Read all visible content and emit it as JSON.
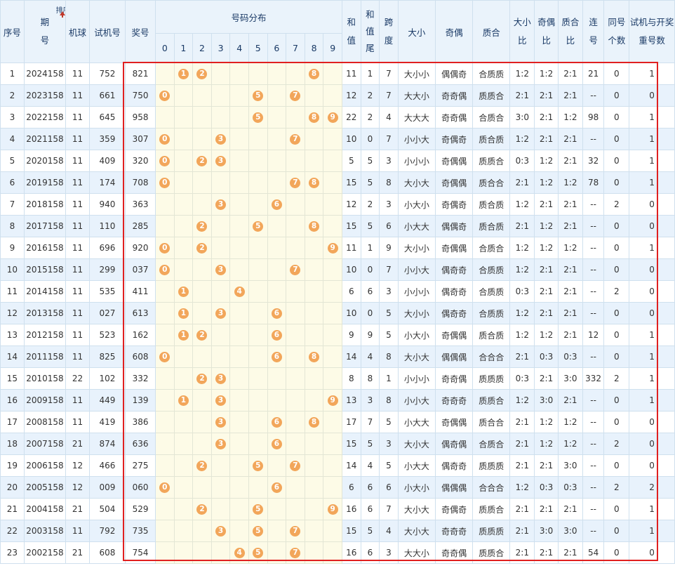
{
  "headers": {
    "seq": "序号",
    "period_top": "期",
    "period_bottom": "号",
    "sort_label": "排序",
    "machine": "机球",
    "trial": "试机号",
    "award": "奖号",
    "dist": "号码分布",
    "digits": [
      "0",
      "1",
      "2",
      "3",
      "4",
      "5",
      "6",
      "7",
      "8",
      "9"
    ],
    "sum_top": "和",
    "sum_bottom": "值",
    "sumtail_1": "和",
    "sumtail_2": "值",
    "sumtail_3": "尾",
    "span_top": "跨",
    "span_bottom": "度",
    "size": "大小",
    "parity": "奇偶",
    "prime": "质合",
    "size_ratio_top": "大小",
    "size_ratio_bottom": "比",
    "parity_ratio_top": "奇偶",
    "parity_ratio_bottom": "比",
    "prime_ratio_top": "质合",
    "prime_ratio_bottom": "比",
    "consec_top": "连",
    "consec_bottom": "号",
    "same_top": "同号",
    "same_bottom": "个数",
    "repeat_top": "试机与开奖",
    "repeat_bottom": "重号数"
  },
  "rows": [
    {
      "seq": "1",
      "period": "2024158",
      "machine": "11",
      "trial": "752",
      "award": "821",
      "balls": [
        1,
        2,
        8
      ],
      "sum": "11",
      "tail": "1",
      "span": "7",
      "size": "大小小",
      "parity": "偶偶奇",
      "prime": "合质质",
      "sr": "1:2",
      "pr": "1:2",
      "qr": "2:1",
      "consec": "21",
      "same": "0",
      "repeat": "1"
    },
    {
      "seq": "2",
      "period": "2023158",
      "machine": "11",
      "trial": "661",
      "award": "750",
      "balls": [
        0,
        5,
        7
      ],
      "sum": "12",
      "tail": "2",
      "span": "7",
      "size": "大大小",
      "parity": "奇奇偶",
      "prime": "质质合",
      "sr": "2:1",
      "pr": "2:1",
      "qr": "2:1",
      "consec": "--",
      "same": "0",
      "repeat": "0"
    },
    {
      "seq": "3",
      "period": "2022158",
      "machine": "11",
      "trial": "645",
      "award": "958",
      "balls": [
        5,
        8,
        9
      ],
      "sum": "22",
      "tail": "2",
      "span": "4",
      "size": "大大大",
      "parity": "奇奇偶",
      "prime": "合质合",
      "sr": "3:0",
      "pr": "2:1",
      "qr": "1:2",
      "consec": "98",
      "same": "0",
      "repeat": "1"
    },
    {
      "seq": "4",
      "period": "2021158",
      "machine": "11",
      "trial": "359",
      "award": "307",
      "balls": [
        0,
        3,
        7
      ],
      "sum": "10",
      "tail": "0",
      "span": "7",
      "size": "小小大",
      "parity": "奇偶奇",
      "prime": "质合质",
      "sr": "1:2",
      "pr": "2:1",
      "qr": "2:1",
      "consec": "--",
      "same": "0",
      "repeat": "1"
    },
    {
      "seq": "5",
      "period": "2020158",
      "machine": "11",
      "trial": "409",
      "award": "320",
      "balls": [
        0,
        2,
        3
      ],
      "sum": "5",
      "tail": "5",
      "span": "3",
      "size": "小小小",
      "parity": "奇偶偶",
      "prime": "质质合",
      "sr": "0:3",
      "pr": "1:2",
      "qr": "2:1",
      "consec": "32",
      "same": "0",
      "repeat": "1"
    },
    {
      "seq": "6",
      "period": "2019158",
      "machine": "11",
      "trial": "174",
      "award": "708",
      "balls": [
        0,
        7,
        8
      ],
      "sum": "15",
      "tail": "5",
      "span": "8",
      "size": "大小大",
      "parity": "奇偶偶",
      "prime": "质合合",
      "sr": "2:1",
      "pr": "1:2",
      "qr": "1:2",
      "consec": "78",
      "same": "0",
      "repeat": "1"
    },
    {
      "seq": "7",
      "period": "2018158",
      "machine": "11",
      "trial": "940",
      "award": "363",
      "balls": [
        3,
        6
      ],
      "sum": "12",
      "tail": "2",
      "span": "3",
      "size": "小大小",
      "parity": "奇偶奇",
      "prime": "质合质",
      "sr": "1:2",
      "pr": "2:1",
      "qr": "2:1",
      "consec": "--",
      "same": "2",
      "repeat": "0"
    },
    {
      "seq": "8",
      "period": "2017158",
      "machine": "11",
      "trial": "110",
      "award": "285",
      "balls": [
        2,
        5,
        8
      ],
      "sum": "15",
      "tail": "5",
      "span": "6",
      "size": "小大大",
      "parity": "偶偶奇",
      "prime": "质合质",
      "sr": "2:1",
      "pr": "1:2",
      "qr": "2:1",
      "consec": "--",
      "same": "0",
      "repeat": "0"
    },
    {
      "seq": "9",
      "period": "2016158",
      "machine": "11",
      "trial": "696",
      "award": "920",
      "balls": [
        0,
        2,
        9
      ],
      "sum": "11",
      "tail": "1",
      "span": "9",
      "size": "大小小",
      "parity": "奇偶偶",
      "prime": "合质合",
      "sr": "1:2",
      "pr": "1:2",
      "qr": "1:2",
      "consec": "--",
      "same": "0",
      "repeat": "1"
    },
    {
      "seq": "10",
      "period": "2015158",
      "machine": "11",
      "trial": "299",
      "award": "037",
      "balls": [
        0,
        3,
        7
      ],
      "sum": "10",
      "tail": "0",
      "span": "7",
      "size": "小小大",
      "parity": "偶奇奇",
      "prime": "合质质",
      "sr": "1:2",
      "pr": "2:1",
      "qr": "2:1",
      "consec": "--",
      "same": "0",
      "repeat": "0"
    },
    {
      "seq": "11",
      "period": "2014158",
      "machine": "11",
      "trial": "535",
      "award": "411",
      "balls": [
        1,
        4
      ],
      "sum": "6",
      "tail": "6",
      "span": "3",
      "size": "小小小",
      "parity": "偶奇奇",
      "prime": "合质质",
      "sr": "0:3",
      "pr": "2:1",
      "qr": "2:1",
      "consec": "--",
      "same": "2",
      "repeat": "0"
    },
    {
      "seq": "12",
      "period": "2013158",
      "machine": "11",
      "trial": "027",
      "award": "613",
      "balls": [
        1,
        3,
        6
      ],
      "sum": "10",
      "tail": "0",
      "span": "5",
      "size": "大小小",
      "parity": "偶奇奇",
      "prime": "合质质",
      "sr": "1:2",
      "pr": "2:1",
      "qr": "2:1",
      "consec": "--",
      "same": "0",
      "repeat": "0"
    },
    {
      "seq": "13",
      "period": "2012158",
      "machine": "11",
      "trial": "523",
      "award": "162",
      "balls": [
        1,
        2,
        6
      ],
      "sum": "9",
      "tail": "9",
      "span": "5",
      "size": "小大小",
      "parity": "奇偶偶",
      "prime": "质合质",
      "sr": "1:2",
      "pr": "1:2",
      "qr": "2:1",
      "consec": "12",
      "same": "0",
      "repeat": "1"
    },
    {
      "seq": "14",
      "period": "2011158",
      "machine": "11",
      "trial": "825",
      "award": "608",
      "balls": [
        0,
        6,
        8
      ],
      "sum": "14",
      "tail": "4",
      "span": "8",
      "size": "大小大",
      "parity": "偶偶偶",
      "prime": "合合合",
      "sr": "2:1",
      "pr": "0:3",
      "qr": "0:3",
      "consec": "--",
      "same": "0",
      "repeat": "1"
    },
    {
      "seq": "15",
      "period": "2010158",
      "machine": "22",
      "trial": "102",
      "award": "332",
      "balls": [
        2,
        3
      ],
      "sum": "8",
      "tail": "8",
      "span": "1",
      "size": "小小小",
      "parity": "奇奇偶",
      "prime": "质质质",
      "sr": "0:3",
      "pr": "2:1",
      "qr": "3:0",
      "consec": "332",
      "same": "2",
      "repeat": "1"
    },
    {
      "seq": "16",
      "period": "2009158",
      "machine": "11",
      "trial": "449",
      "award": "139",
      "balls": [
        1,
        3,
        9
      ],
      "sum": "13",
      "tail": "3",
      "span": "8",
      "size": "小小大",
      "parity": "奇奇奇",
      "prime": "质质合",
      "sr": "1:2",
      "pr": "3:0",
      "qr": "2:1",
      "consec": "--",
      "same": "0",
      "repeat": "1"
    },
    {
      "seq": "17",
      "period": "2008158",
      "machine": "11",
      "trial": "419",
      "award": "386",
      "balls": [
        3,
        6,
        8
      ],
      "sum": "17",
      "tail": "7",
      "span": "5",
      "size": "小大大",
      "parity": "奇偶偶",
      "prime": "质合合",
      "sr": "2:1",
      "pr": "1:2",
      "qr": "1:2",
      "consec": "--",
      "same": "0",
      "repeat": "0"
    },
    {
      "seq": "18",
      "period": "2007158",
      "machine": "21",
      "trial": "874",
      "award": "636",
      "balls": [
        3,
        6
      ],
      "sum": "15",
      "tail": "5",
      "span": "3",
      "size": "大小大",
      "parity": "偶奇偶",
      "prime": "合质合",
      "sr": "2:1",
      "pr": "1:2",
      "qr": "1:2",
      "consec": "--",
      "same": "2",
      "repeat": "0"
    },
    {
      "seq": "19",
      "period": "2006158",
      "machine": "12",
      "trial": "466",
      "award": "275",
      "balls": [
        2,
        5,
        7
      ],
      "sum": "14",
      "tail": "4",
      "span": "5",
      "size": "小大大",
      "parity": "偶奇奇",
      "prime": "质质质",
      "sr": "2:1",
      "pr": "2:1",
      "qr": "3:0",
      "consec": "--",
      "same": "0",
      "repeat": "0"
    },
    {
      "seq": "20",
      "period": "2005158",
      "machine": "12",
      "trial": "009",
      "award": "060",
      "balls": [
        0,
        6
      ],
      "sum": "6",
      "tail": "6",
      "span": "6",
      "size": "小大小",
      "parity": "偶偶偶",
      "prime": "合合合",
      "sr": "1:2",
      "pr": "0:3",
      "qr": "0:3",
      "consec": "--",
      "same": "2",
      "repeat": "2"
    },
    {
      "seq": "21",
      "period": "2004158",
      "machine": "21",
      "trial": "504",
      "award": "529",
      "balls": [
        2,
        5,
        9
      ],
      "sum": "16",
      "tail": "6",
      "span": "7",
      "size": "大小大",
      "parity": "奇偶奇",
      "prime": "质质合",
      "sr": "2:1",
      "pr": "2:1",
      "qr": "2:1",
      "consec": "--",
      "same": "0",
      "repeat": "1"
    },
    {
      "seq": "22",
      "period": "2003158",
      "machine": "11",
      "trial": "792",
      "award": "735",
      "balls": [
        3,
        5,
        7
      ],
      "sum": "15",
      "tail": "5",
      "span": "4",
      "size": "大小大",
      "parity": "奇奇奇",
      "prime": "质质质",
      "sr": "2:1",
      "pr": "3:0",
      "qr": "3:0",
      "consec": "--",
      "same": "0",
      "repeat": "1"
    },
    {
      "seq": "23",
      "period": "2002158",
      "machine": "21",
      "trial": "608",
      "award": "754",
      "balls": [
        4,
        5,
        7
      ],
      "sum": "16",
      "tail": "6",
      "span": "3",
      "size": "大大小",
      "parity": "奇奇偶",
      "prime": "质质合",
      "sr": "2:1",
      "pr": "2:1",
      "qr": "2:1",
      "consec": "54",
      "same": "0",
      "repeat": "0"
    }
  ],
  "colors": {
    "ball": "#f2a65a",
    "highlight_border": "#e02020",
    "header_bg": "#eaf3fb"
  }
}
